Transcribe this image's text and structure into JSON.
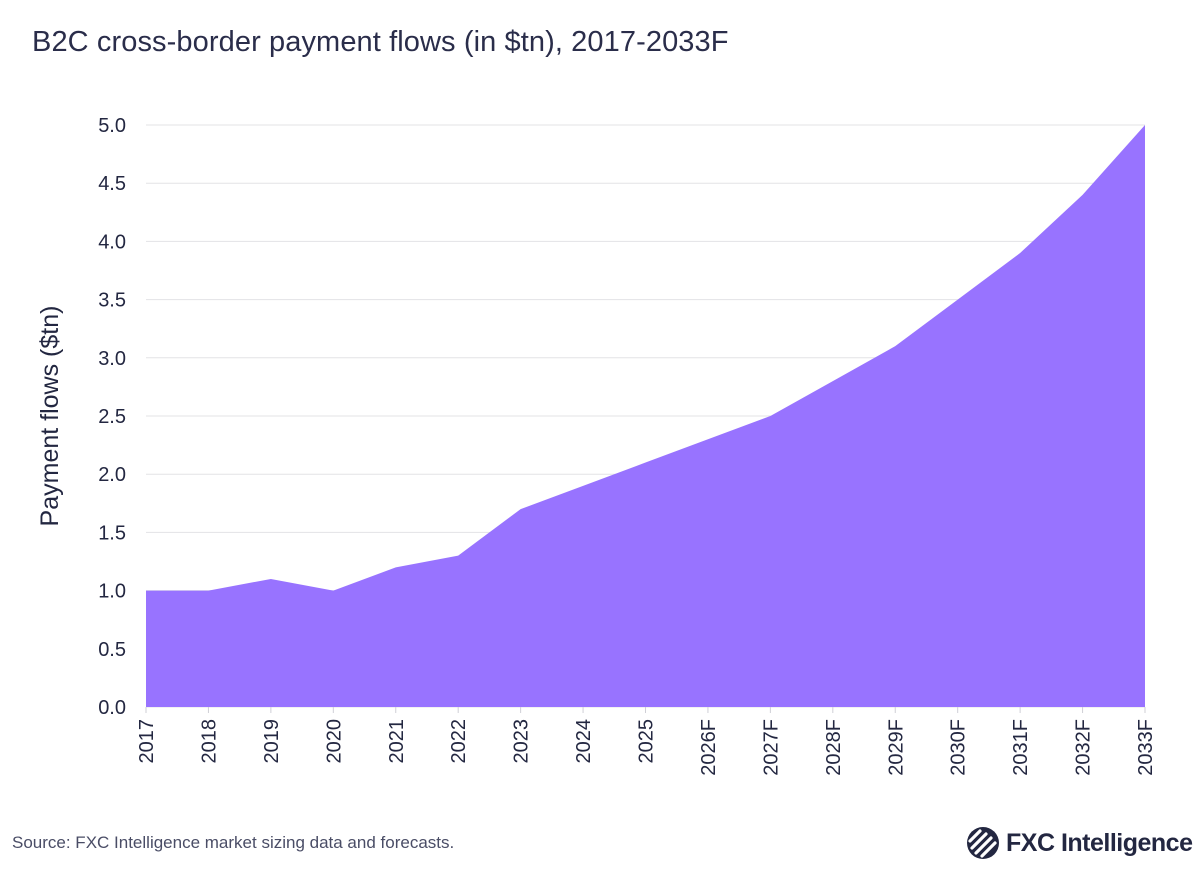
{
  "title": "B2C cross-border payment flows (in $tn), 2017-2033F",
  "footer": {
    "source": "Source: FXC Intelligence market sizing data and forecasts.",
    "logo_text": "FXC Intelligence",
    "logo_icon": "fxc-globe-icon"
  },
  "colors": {
    "area_fill": "#9873ff",
    "grid": "#e3e3e6",
    "text": "#232741"
  },
  "chart_data": {
    "type": "area",
    "title": "B2C cross-border payment flows (in $tn), 2017-2033F",
    "xlabel": "",
    "ylabel": "Payment flows ($tn)",
    "ylim": [
      0,
      5.0
    ],
    "yticks": [
      "0.0",
      "0.5",
      "1.0",
      "1.5",
      "2.0",
      "2.5",
      "3.0",
      "3.5",
      "4.0",
      "4.5",
      "5.0"
    ],
    "grid": true,
    "legend": null,
    "categories": [
      "2017",
      "2018",
      "2019",
      "2020",
      "2021",
      "2022",
      "2023",
      "2024",
      "2025",
      "2026F",
      "2027F",
      "2028F",
      "2029F",
      "2030F",
      "2031F",
      "2032F",
      "2033F"
    ],
    "series": [
      {
        "name": "B2C cross-border payment flows",
        "values": [
          1.0,
          1.0,
          1.1,
          1.0,
          1.2,
          1.3,
          1.7,
          1.9,
          2.1,
          2.3,
          2.5,
          2.8,
          3.1,
          3.5,
          3.9,
          4.4,
          5.0
        ]
      }
    ]
  }
}
